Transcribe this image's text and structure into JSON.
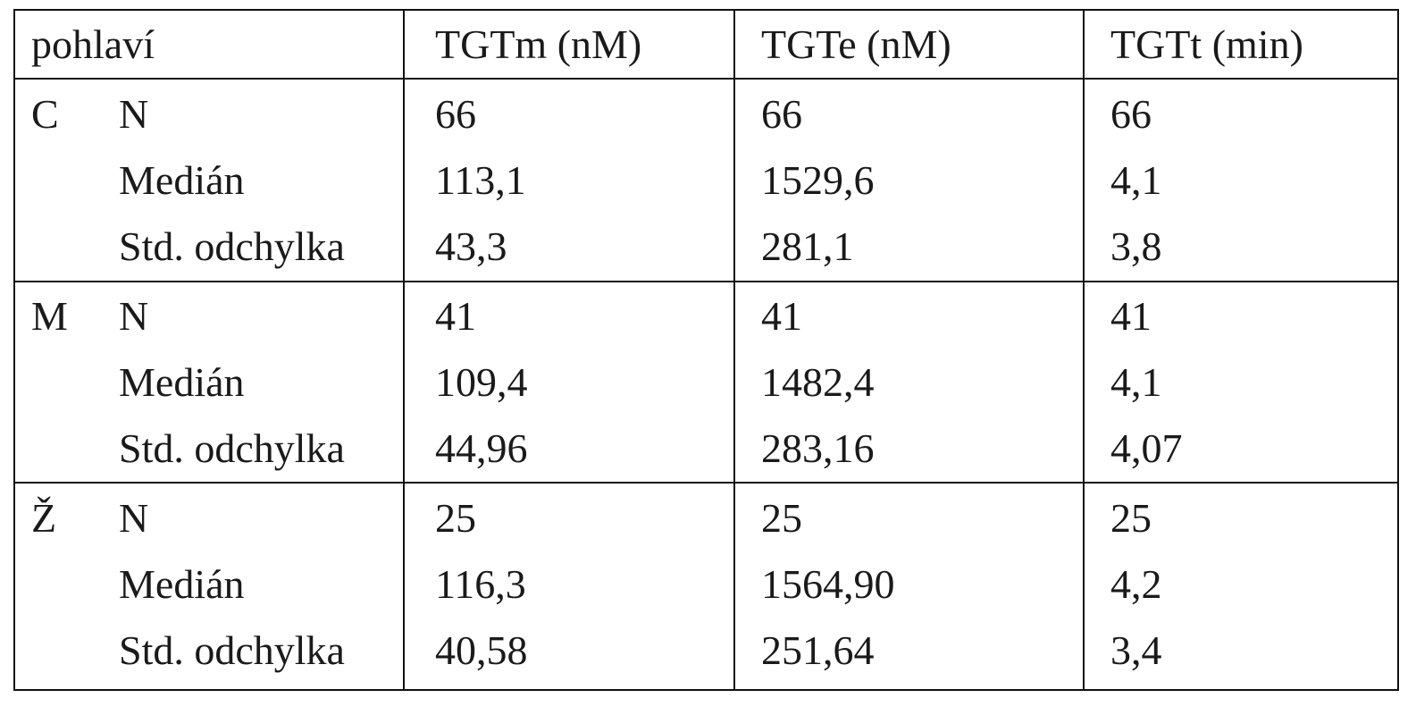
{
  "table": {
    "header": [
      "pohlaví",
      "TGTm (nM)",
      "TGTe (nM)",
      "TGTt (min)"
    ],
    "groups": [
      {
        "label": "C",
        "rows": [
          [
            "N",
            "66",
            "66",
            "66"
          ],
          [
            "Medián",
            "113,1",
            "1529,6",
            "4,1"
          ],
          [
            "Std. odchylka",
            "43,3",
            "281,1",
            "3,8"
          ]
        ]
      },
      {
        "label": "M",
        "rows": [
          [
            "N",
            "41",
            "41",
            "41"
          ],
          [
            "Medián",
            "109,4",
            "1482,4",
            "4,1"
          ],
          [
            "Std. odchylka",
            "44,96",
            "283,16",
            "4,07"
          ]
        ]
      },
      {
        "label": "Ž",
        "rows": [
          [
            "N",
            "25",
            "25",
            "25"
          ],
          [
            "Medián",
            "116,3",
            "1564,90",
            "4,2"
          ],
          [
            "Std. odchylka",
            "40,58",
            "251,64",
            "3,4"
          ]
        ]
      }
    ]
  }
}
